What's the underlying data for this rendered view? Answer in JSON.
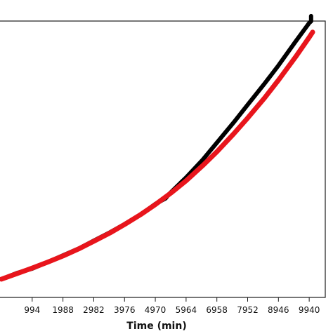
{
  "chart_data": {
    "type": "line",
    "title": "",
    "xlabel": "Time (min)",
    "ylabel": "",
    "xlim": [
      0,
      10300
    ],
    "ylim": [
      0,
      1
    ],
    "x_ticks": [
      994,
      1988,
      2982,
      3976,
      4970,
      5964,
      6958,
      7952,
      8946,
      9940
    ],
    "x_tick_labels": [
      "994",
      "1988",
      "2982",
      "3976",
      "4970",
      "5964",
      "6958",
      "7952",
      "8946",
      "9940"
    ],
    "grid": false,
    "legend": "none",
    "series": [
      {
        "color": "#000000",
        "x": [
          0,
          500,
          994,
          1500,
          1988,
          2500,
          2982,
          3500,
          3976,
          4500,
          4970,
          5300,
          5450,
          5964,
          6500,
          6958,
          7500,
          7952,
          8500,
          8946,
          9500,
          9940,
          10000,
          10000
        ],
        "y": [
          0.066,
          0.088,
          0.104,
          0.128,
          0.152,
          0.177,
          0.205,
          0.235,
          0.265,
          0.3,
          0.338,
          0.358,
          0.378,
          0.434,
          0.498,
          0.56,
          0.633,
          0.697,
          0.774,
          0.839,
          0.926,
          0.993,
          0.999,
          1.018
        ]
      },
      {
        "color": "#e8151c",
        "x": [
          0,
          500,
          994,
          1500,
          1988,
          2500,
          2982,
          3500,
          3976,
          4500,
          4970,
          5500,
          5964,
          6500,
          6958,
          7500,
          7952,
          8500,
          8946,
          9500,
          9940,
          10050
        ],
        "y": [
          0.066,
          0.086,
          0.106,
          0.128,
          0.15,
          0.176,
          0.203,
          0.233,
          0.264,
          0.3,
          0.336,
          0.38,
          0.422,
          0.477,
          0.527,
          0.592,
          0.649,
          0.722,
          0.786,
          0.87,
          0.941,
          0.96
        ]
      }
    ]
  }
}
